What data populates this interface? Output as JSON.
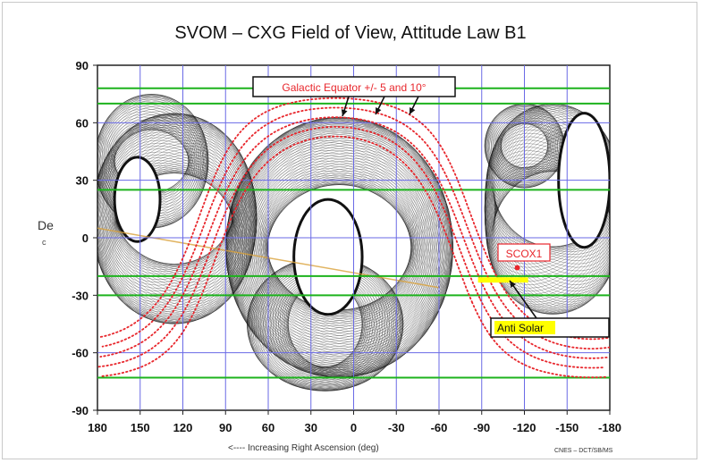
{
  "chart_data": {
    "type": "scatter",
    "title": "SVOM – CXG Field of View, Attitude Law B1",
    "ylabel": "De",
    "ylabel_sub": "c",
    "xlabel": "<---- Increasing Right Ascension (deg)",
    "credit": "CNES – DCT/SB/MS",
    "xlim": [
      180,
      -180
    ],
    "ylim": [
      -90,
      90
    ],
    "x_ticks": [
      180,
      150,
      120,
      90,
      60,
      30,
      0,
      -30,
      -60,
      -90,
      -120,
      -150,
      -180
    ],
    "y_ticks": [
      90,
      60,
      30,
      0,
      -30,
      -60,
      -90
    ],
    "x_grid": [
      150,
      120,
      90,
      60,
      30,
      0,
      -30,
      -60,
      -90,
      -120,
      -150
    ],
    "y_grid_blue": [
      60,
      30,
      0,
      -30,
      -60
    ],
    "green_lines_dec": [
      78,
      70,
      25,
      -20,
      -30,
      -73
    ],
    "galactic_offsets_deg": [
      -10,
      -5,
      0,
      5,
      10
    ],
    "annotations": {
      "galactic": "Galactic Equator +/- 5 and 10°",
      "scox1": "SCOX1",
      "anti_solar": "Anti Solar"
    },
    "points": {
      "scox1": {
        "ra": -115,
        "dec": -15.6
      },
      "anti_solar": {
        "ra": -105,
        "dec": -22
      }
    },
    "colors": {
      "galactic": "#e8262c",
      "green": "#1db31d",
      "blue_grid": "#6a6ae6",
      "fov": "#111111",
      "anti_solar_highlight": "#ffff00",
      "orange": "#d9a13a"
    }
  }
}
